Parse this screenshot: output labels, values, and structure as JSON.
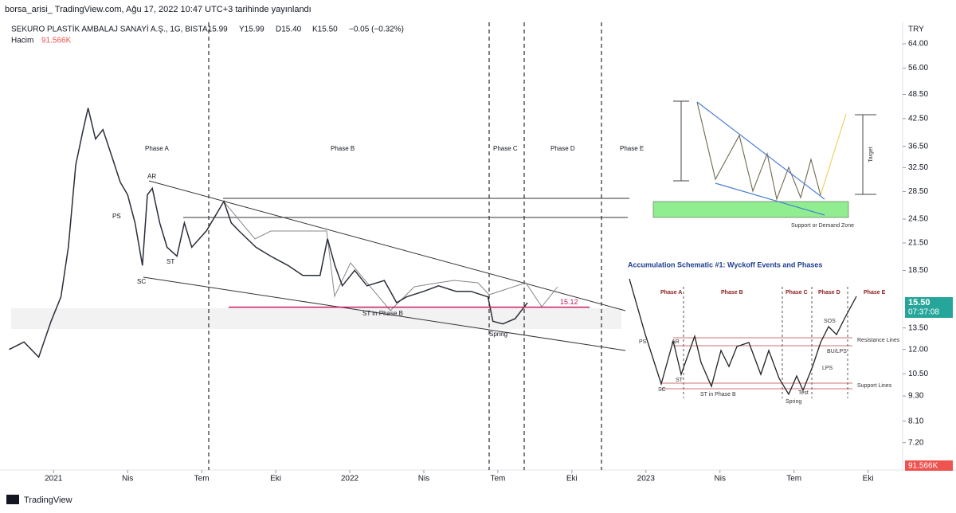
{
  "header": {
    "publisher": "borsa_arisi_ TradingView.com, Ağu 17, 2022 10:47 UTC+3 tarihinde yayınlandı",
    "symbol": "SEKURO PLASTİK AMBALAJ SANAYİ A.Ş., 1G, BIST",
    "open": "A15.99",
    "high": "Y15.99",
    "low": "D15.40",
    "close": "K15.50",
    "change": "−0.05 (−0.32%)",
    "volume_label": "Hacim",
    "volume": "91.566K",
    "currency": "TRY",
    "brand": "TradingView"
  },
  "chart_data": {
    "type": "line",
    "log": true,
    "xlim": [
      -2.17,
      34.4
    ],
    "ylim": [
      6.2,
      72
    ],
    "xticks": [
      {
        "value": 0,
        "label": "2021"
      },
      {
        "value": 3,
        "label": "Nis"
      },
      {
        "value": 6,
        "label": "Tem"
      },
      {
        "value": 9,
        "label": "Eki"
      },
      {
        "value": 12,
        "label": "2022"
      },
      {
        "value": 15,
        "label": "Nis"
      },
      {
        "value": 18,
        "label": "Tem"
      },
      {
        "value": 21,
        "label": "Eki"
      },
      {
        "value": 24,
        "label": "2023"
      },
      {
        "value": 27,
        "label": "Nis"
      },
      {
        "value": 30,
        "label": "Tem"
      },
      {
        "value": 33,
        "label": "Eki"
      }
    ],
    "yticks": [
      {
        "value": 64,
        "label": "64.00"
      },
      {
        "value": 56,
        "label": "56.00"
      },
      {
        "value": 48.5,
        "label": "48.50"
      },
      {
        "value": 42.5,
        "label": "42.50"
      },
      {
        "value": 36.5,
        "label": "36.50"
      },
      {
        "value": 32.5,
        "label": "32.50"
      },
      {
        "value": 28.5,
        "label": "28.50"
      },
      {
        "value": 24.5,
        "label": "24.50"
      },
      {
        "value": 21.5,
        "label": "21.50"
      },
      {
        "value": 18.5,
        "label": "18.50"
      },
      {
        "value": 13.5,
        "label": "13.50"
      },
      {
        "value": 12,
        "label": "12.00"
      },
      {
        "value": 10.5,
        "label": "10.50"
      },
      {
        "value": 9.3,
        "label": "9.30"
      },
      {
        "value": 8.1,
        "label": "8.10"
      },
      {
        "value": 7.2,
        "label": "7.20"
      }
    ],
    "series": [
      {
        "color": "#2a2e39",
        "x": [
          -1.8,
          -1.2,
          -0.6,
          -0.1,
          0.3,
          0.6,
          0.9,
          1.2,
          1.4,
          1.7,
          2.0,
          2.4,
          2.7,
          3.0,
          3.3,
          3.6,
          3.8,
          4.0,
          4.3,
          4.6,
          5.0,
          5.3,
          5.6,
          6.2,
          6.9,
          7.2,
          7.5,
          8.2,
          8.8,
          9.5,
          10.1,
          10.8,
          11.1,
          11.4,
          11.7,
          12.2,
          12.7,
          13.4,
          13.9,
          14.3,
          15.0,
          15.6,
          16.3,
          16.9,
          17.6,
          17.8,
          18.2,
          18.7,
          19.2
        ],
        "values": [
          12,
          12.5,
          11.5,
          14,
          16,
          21,
          33,
          40,
          45,
          38,
          40,
          34,
          30,
          28,
          24,
          19,
          28,
          29,
          24,
          21,
          20,
          24,
          21,
          23,
          27,
          24,
          23,
          21,
          20,
          19,
          18,
          18,
          22,
          19,
          17,
          18.5,
          17,
          17.5,
          15.5,
          16,
          16.5,
          17,
          16.5,
          16.5,
          16,
          14,
          13.8,
          14.2,
          15.5
        ]
      }
    ],
    "level": {
      "value": 15.12
    },
    "last_price": {
      "value": 15.5,
      "label": "15.50"
    },
    "countdown": "07:37:08",
    "phases": [
      "Phase A",
      "Phase B",
      "Phase C",
      "Phase D",
      "Phase E"
    ],
    "events": [
      "AR",
      "PS",
      "ST",
      "SC",
      "ST in Phase B",
      "Spring"
    ]
  },
  "inset_target": {
    "target": "Target",
    "zone": "Support or Demand Zone"
  },
  "inset_wyckoff": {
    "title": "Accumulation Schematic #1: Wyckoff Events and Phases",
    "phases": [
      "Phase A",
      "Phase B",
      "Phase C",
      "Phase D",
      "Phase E"
    ],
    "events": [
      "PS",
      "AR",
      "SC",
      "ST",
      "ST in Phase B",
      "Spring",
      "Test",
      "LPS",
      "BU/LPS",
      "SOS"
    ],
    "resistance": "Resistance Lines",
    "support": "Support Lines"
  }
}
